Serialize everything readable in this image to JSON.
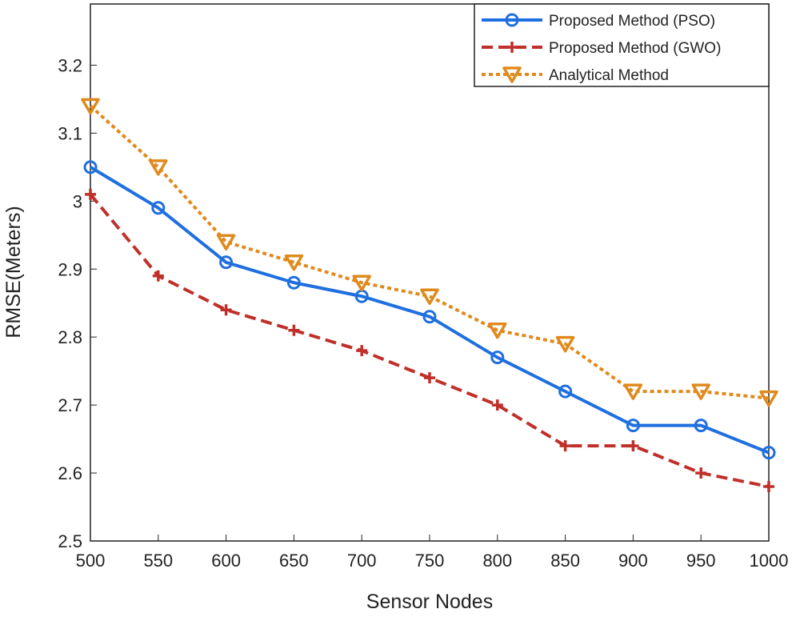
{
  "chart_data": {
    "type": "line",
    "title": "",
    "xlabel": "Sensor Nodes",
    "ylabel": "RMSE(Meters)",
    "x": [
      500,
      550,
      600,
      650,
      700,
      750,
      800,
      850,
      900,
      950,
      1000
    ],
    "xticks": [
      "500",
      "550",
      "600",
      "650",
      "700",
      "750",
      "800",
      "850",
      "900",
      "950",
      "1000"
    ],
    "yticks": [
      "2.5",
      "2.6",
      "2.7",
      "2.8",
      "2.9",
      "3",
      "3.1",
      "3.2"
    ],
    "ytick_values": [
      2.5,
      2.6,
      2.7,
      2.8,
      2.9,
      3.0,
      3.1,
      3.2
    ],
    "xlim": [
      500,
      1000
    ],
    "ylim": [
      2.5,
      3.29
    ],
    "grid": false,
    "legend_position": "top-right",
    "series": [
      {
        "name": "Proposed Method (PSO)",
        "color": "#1f6fe0",
        "marker": "circle",
        "dash": "solid",
        "values": [
          3.05,
          2.99,
          2.91,
          2.88,
          2.86,
          2.83,
          2.77,
          2.72,
          2.67,
          2.67,
          2.63
        ]
      },
      {
        "name": "Proposed Method (GWO)",
        "color": "#c0302a",
        "marker": "plus",
        "dash": "dashed",
        "values": [
          3.01,
          2.89,
          2.84,
          2.81,
          2.78,
          2.74,
          2.7,
          2.64,
          2.64,
          2.6,
          2.58
        ]
      },
      {
        "name": "Analytical Method",
        "color": "#e08a1e",
        "marker": "triangle-down",
        "dash": "dotted",
        "values": [
          3.14,
          3.05,
          2.94,
          2.91,
          2.88,
          2.86,
          2.81,
          2.79,
          2.72,
          2.72,
          2.71
        ]
      }
    ]
  }
}
